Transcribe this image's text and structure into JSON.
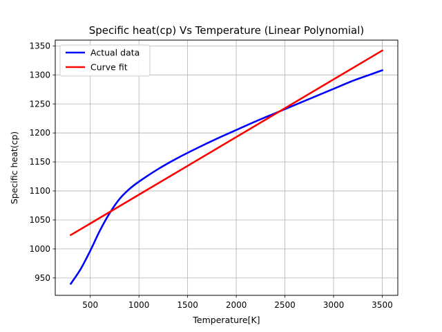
{
  "chart_data": {
    "type": "line",
    "title": "Specific heat(cp) Vs Temperature (Linear Polynomial)",
    "xlabel": "Temperature[K]",
    "ylabel": "Specific heat(cp)",
    "xlim": [
      140,
      3660
    ],
    "ylim": [
      920,
      1360
    ],
    "xticks": [
      500,
      1000,
      1500,
      2000,
      2500,
      3000,
      3500
    ],
    "yticks": [
      950,
      1000,
      1050,
      1100,
      1150,
      1200,
      1250,
      1300,
      1350
    ],
    "grid": true,
    "legend_position": "upper-left",
    "series": [
      {
        "name": "Actual data",
        "color": "#0000ff",
        "x": [
          300,
          400,
          500,
          600,
          700,
          800,
          900,
          1000,
          1200,
          1400,
          1600,
          1800,
          2000,
          2200,
          2400,
          2600,
          2800,
          3000,
          3200,
          3400,
          3500
        ],
        "y": [
          940,
          965,
          997,
          1032,
          1062,
          1086,
          1103,
          1116,
          1138,
          1157,
          1174,
          1190,
          1205,
          1220,
          1234,
          1248,
          1262,
          1276,
          1290,
          1302,
          1308
        ]
      },
      {
        "name": "Curve fit",
        "color": "#ff0000",
        "x": [
          300,
          3500
        ],
        "y": [
          1024,
          1342
        ]
      }
    ]
  }
}
